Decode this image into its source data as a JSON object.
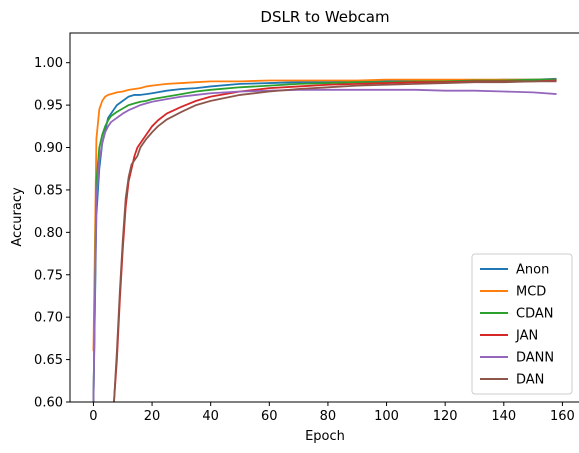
{
  "chart_data": {
    "type": "line",
    "title": "DSLR to Webcam",
    "xlabel": "Epoch",
    "ylabel": "Accuracy",
    "xlim": [
      -8,
      166
    ],
    "ylim": [
      0.6,
      1.035
    ],
    "xticks": [
      0,
      20,
      40,
      60,
      80,
      100,
      120,
      140,
      160
    ],
    "yticks": [
      0.6,
      0.65,
      0.7,
      0.75,
      0.8,
      0.85,
      0.9,
      0.95,
      1.0
    ],
    "grid": false,
    "legend_position": "lower-right",
    "colors": {
      "Anon": "#1f77b4",
      "MCD": "#ff7f0e",
      "CDAN": "#2ca02c",
      "JAN": "#d62728",
      "DANN": "#9467bd",
      "DAN": "#8c564b"
    },
    "series": [
      {
        "name": "Anon",
        "x": [
          0,
          1,
          2,
          3,
          4,
          5,
          6,
          8,
          10,
          12,
          14,
          16,
          18,
          20,
          25,
          30,
          35,
          40,
          50,
          60,
          70,
          80,
          90,
          100,
          110,
          120,
          130,
          140,
          150,
          158
        ],
        "y": [
          0.6,
          0.82,
          0.875,
          0.905,
          0.92,
          0.935,
          0.94,
          0.95,
          0.955,
          0.96,
          0.962,
          0.962,
          0.963,
          0.964,
          0.967,
          0.969,
          0.97,
          0.972,
          0.975,
          0.976,
          0.977,
          0.977,
          0.978,
          0.978,
          0.979,
          0.979,
          0.979,
          0.98,
          0.98,
          0.981
        ]
      },
      {
        "name": "MCD",
        "x": [
          0,
          1,
          2,
          3,
          4,
          5,
          6,
          8,
          10,
          12,
          14,
          16,
          18,
          20,
          25,
          30,
          35,
          40,
          50,
          60,
          70,
          80,
          90,
          100,
          110,
          120,
          130,
          140,
          150,
          158
        ],
        "y": [
          0.66,
          0.91,
          0.945,
          0.955,
          0.96,
          0.962,
          0.963,
          0.965,
          0.966,
          0.968,
          0.969,
          0.97,
          0.972,
          0.973,
          0.975,
          0.976,
          0.977,
          0.978,
          0.978,
          0.979,
          0.979,
          0.979,
          0.979,
          0.98,
          0.98,
          0.98,
          0.98,
          0.98,
          0.98,
          0.98
        ]
      },
      {
        "name": "CDAN",
        "x": [
          0,
          1,
          2,
          3,
          4,
          5,
          6,
          8,
          10,
          12,
          14,
          16,
          18,
          20,
          25,
          30,
          35,
          40,
          50,
          60,
          70,
          80,
          90,
          100,
          110,
          120,
          130,
          140,
          150,
          158
        ],
        "y": [
          0.6,
          0.86,
          0.9,
          0.915,
          0.925,
          0.932,
          0.937,
          0.942,
          0.946,
          0.95,
          0.952,
          0.954,
          0.955,
          0.957,
          0.96,
          0.963,
          0.966,
          0.968,
          0.971,
          0.973,
          0.975,
          0.976,
          0.977,
          0.977,
          0.978,
          0.978,
          0.979,
          0.979,
          0.98,
          0.98
        ]
      },
      {
        "name": "JAN",
        "x": [
          7,
          8,
          9,
          10,
          11,
          12,
          13,
          14,
          15,
          16,
          18,
          20,
          22,
          25,
          30,
          35,
          40,
          50,
          60,
          70,
          80,
          90,
          100,
          110,
          120,
          130,
          140,
          150,
          158
        ],
        "y": [
          0.6,
          0.65,
          0.72,
          0.78,
          0.83,
          0.86,
          0.875,
          0.89,
          0.9,
          0.905,
          0.915,
          0.925,
          0.932,
          0.94,
          0.948,
          0.955,
          0.96,
          0.966,
          0.97,
          0.972,
          0.974,
          0.975,
          0.976,
          0.977,
          0.977,
          0.978,
          0.978,
          0.978,
          0.979
        ]
      },
      {
        "name": "DANN",
        "x": [
          0,
          1,
          2,
          3,
          4,
          5,
          6,
          8,
          10,
          12,
          14,
          16,
          18,
          20,
          25,
          30,
          35,
          40,
          50,
          60,
          70,
          80,
          90,
          100,
          110,
          120,
          130,
          140,
          150,
          158
        ],
        "y": [
          0.6,
          0.84,
          0.885,
          0.905,
          0.918,
          0.925,
          0.93,
          0.935,
          0.94,
          0.944,
          0.947,
          0.95,
          0.952,
          0.954,
          0.957,
          0.96,
          0.962,
          0.964,
          0.966,
          0.967,
          0.968,
          0.968,
          0.968,
          0.968,
          0.968,
          0.967,
          0.967,
          0.966,
          0.965,
          0.963
        ]
      },
      {
        "name": "DAN",
        "x": [
          7,
          8,
          9,
          10,
          11,
          12,
          13,
          14,
          15,
          16,
          18,
          20,
          22,
          25,
          30,
          35,
          40,
          50,
          60,
          70,
          80,
          90,
          100,
          110,
          120,
          130,
          140,
          150,
          158
        ],
        "y": [
          0.6,
          0.66,
          0.73,
          0.79,
          0.84,
          0.865,
          0.88,
          0.885,
          0.89,
          0.9,
          0.91,
          0.918,
          0.925,
          0.933,
          0.942,
          0.95,
          0.955,
          0.962,
          0.966,
          0.969,
          0.971,
          0.973,
          0.974,
          0.975,
          0.976,
          0.977,
          0.977,
          0.978,
          0.978
        ]
      }
    ]
  }
}
